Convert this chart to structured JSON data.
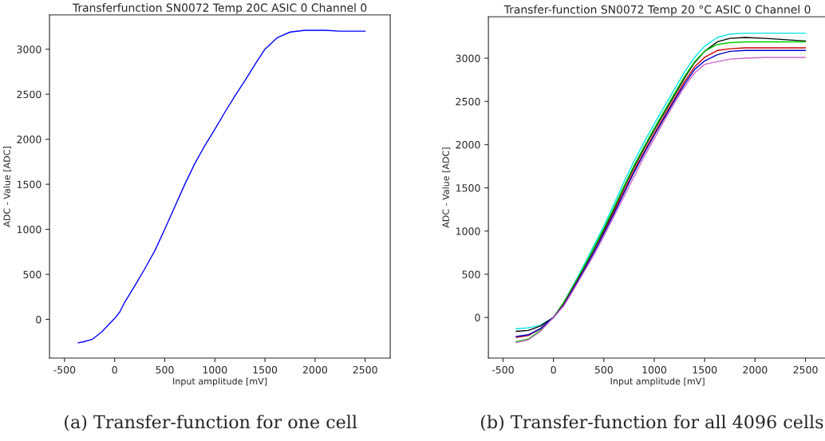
{
  "chart_data": [
    {
      "type": "line",
      "title": "Transferfunction SN0072 Temp 20C ASIC 0 Channel 0",
      "xlabel": "Input amplitude [mV]",
      "ylabel": "ADC - Value [ADC]",
      "annotations": [
        "(a) Transfer-function for one cell"
      ],
      "xlim": [
        -650,
        2750
      ],
      "ylim": [
        -430,
        3380
      ],
      "xticks": [
        -500,
        0,
        500,
        1000,
        1500,
        2000,
        2500
      ],
      "yticks": [
        0,
        500,
        1000,
        1500,
        2000,
        2500,
        3000
      ],
      "x": [
        -365,
        -315,
        -220,
        -130,
        0,
        50,
        100,
        200,
        300,
        400,
        500,
        600,
        700,
        800,
        900,
        1000,
        1100,
        1200,
        1300,
        1400,
        1500,
        1625,
        1750,
        1900,
        2000,
        2100,
        2250,
        2500
      ],
      "series": [
        {
          "color": "#0000ff",
          "values": [
            -260,
            -250,
            -220,
            -140,
            10,
            80,
            190,
            370,
            560,
            760,
            1000,
            1250,
            1500,
            1730,
            1930,
            2110,
            2300,
            2480,
            2650,
            2830,
            3000,
            3130,
            3190,
            3210,
            3210,
            3210,
            3200,
            3200
          ]
        }
      ]
    },
    {
      "type": "line",
      "title": "Transfer-function SN0072 Temp 20 °C ASIC 0 Channel 0",
      "xlabel": "Input amplitude [mV]",
      "ylabel": "ADC - Value [ADC]",
      "annotations": [
        "(b) Transfer-function for all 4096 cells"
      ],
      "xlim": [
        -645,
        2710
      ],
      "ylim": [
        -470,
        3480
      ],
      "xticks": [
        -500,
        0,
        500,
        1000,
        1500,
        2000,
        2500
      ],
      "yticks": [
        0,
        500,
        1000,
        1500,
        2000,
        2500,
        3000
      ],
      "x": [
        -370,
        -250,
        -130,
        0,
        100,
        200,
        300,
        400,
        500,
        600,
        700,
        800,
        900,
        1000,
        1100,
        1200,
        1300,
        1400,
        1500,
        1625,
        1750,
        1900,
        2100,
        2500
      ],
      "series": [
        {
          "color": "#00e5e5",
          "values": [
            -130,
            -120,
            -90,
            0,
            170,
            380,
            600,
            830,
            1060,
            1310,
            1570,
            1810,
            2030,
            2240,
            2440,
            2640,
            2840,
            3010,
            3140,
            3240,
            3280,
            3290,
            3290,
            3290
          ]
        },
        {
          "color": "#000000",
          "values": [
            -160,
            -150,
            -100,
            0,
            160,
            360,
            570,
            790,
            1010,
            1250,
            1500,
            1740,
            1960,
            2170,
            2370,
            2570,
            2770,
            2950,
            3080,
            3190,
            3230,
            3240,
            3230,
            3200
          ]
        },
        {
          "color": "#00cc00",
          "values": [
            -280,
            -250,
            -150,
            0,
            170,
            370,
            580,
            800,
            1030,
            1270,
            1520,
            1760,
            1980,
            2190,
            2390,
            2590,
            2790,
            2960,
            3080,
            3160,
            3180,
            3190,
            3190,
            3190
          ]
        },
        {
          "color": "#cc0000",
          "values": [
            -230,
            -210,
            -130,
            0,
            150,
            350,
            550,
            760,
            980,
            1220,
            1460,
            1700,
            1920,
            2130,
            2330,
            2530,
            2730,
            2900,
            3010,
            3090,
            3110,
            3120,
            3120,
            3120
          ]
        },
        {
          "color": "#0000cc",
          "values": [
            -220,
            -200,
            -130,
            0,
            140,
            340,
            540,
            750,
            970,
            1200,
            1440,
            1680,
            1900,
            2110,
            2310,
            2510,
            2700,
            2870,
            2970,
            3040,
            3080,
            3090,
            3090,
            3090
          ]
        },
        {
          "color": "#cc66cc",
          "values": [
            -290,
            -260,
            -160,
            0,
            130,
            320,
            520,
            720,
            940,
            1170,
            1400,
            1630,
            1860,
            2070,
            2280,
            2480,
            2670,
            2830,
            2930,
            2960,
            2990,
            3000,
            3010,
            3010
          ]
        }
      ]
    }
  ]
}
